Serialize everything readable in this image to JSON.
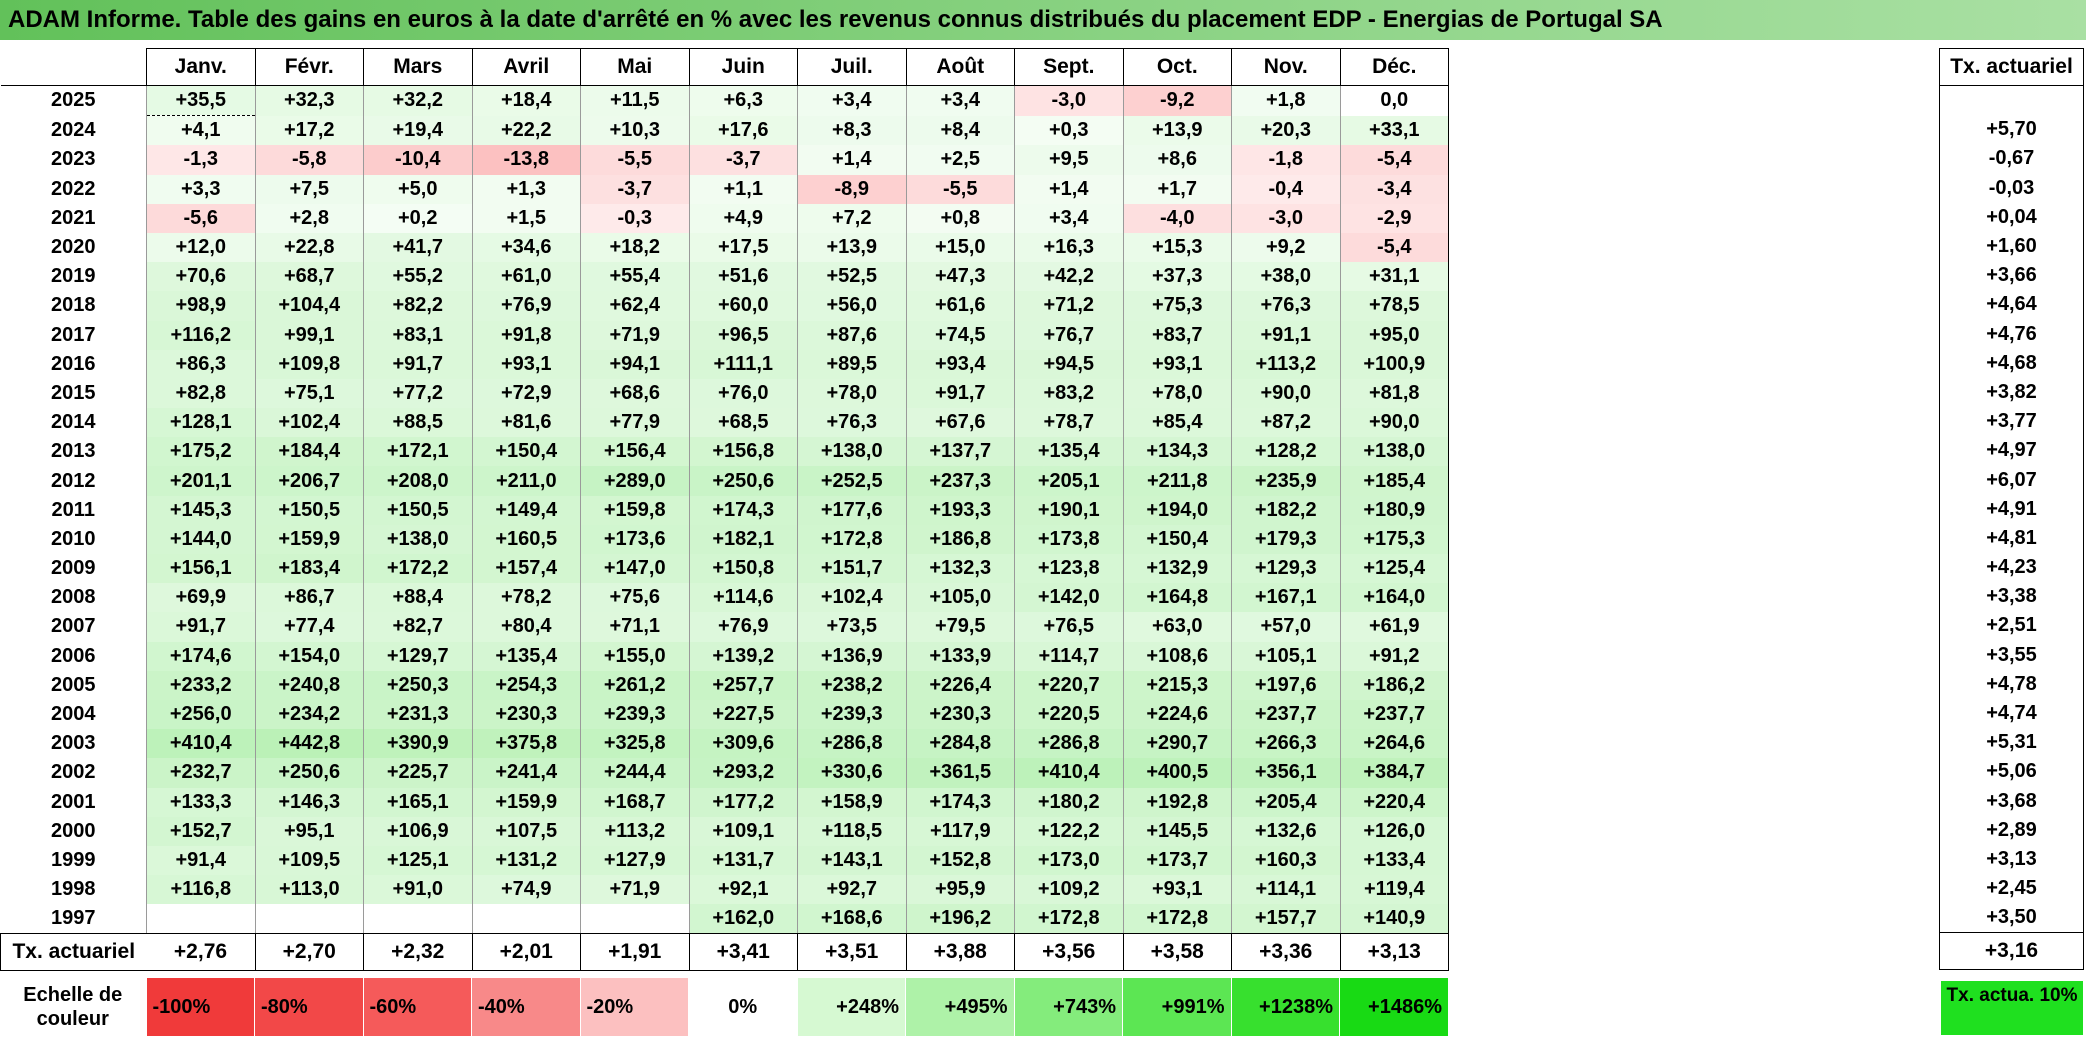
{
  "title": "ADAM Informe. Table des gains en euros à la date d'arrêté en % avec les revenus connus distribués du placement EDP - Energias de Portugal SA",
  "months": [
    "Janv.",
    "Févr.",
    "Mars",
    "Avril",
    "Mai",
    "Juin",
    "Juil.",
    "Août",
    "Sept.",
    "Oct.",
    "Nov.",
    "Déc."
  ],
  "side_header": "Tx. actuariel",
  "rows": [
    {
      "year": "2025",
      "vals": [
        "+35,5",
        "+32,3",
        "+32,2",
        "+18,4",
        "+11,5",
        "+6,3",
        "+3,4",
        "+3,4",
        "-3,0",
        "-9,2",
        "+1,8",
        "0,0"
      ],
      "tx": ""
    },
    {
      "year": "2024",
      "vals": [
        "+4,1",
        "+17,2",
        "+19,4",
        "+22,2",
        "+10,3",
        "+17,6",
        "+8,3",
        "+8,4",
        "+0,3",
        "+13,9",
        "+20,3",
        "+33,1"
      ],
      "tx": "+5,70"
    },
    {
      "year": "2023",
      "vals": [
        "-1,3",
        "-5,8",
        "-10,4",
        "-13,8",
        "-5,5",
        "-3,7",
        "+1,4",
        "+2,5",
        "+9,5",
        "+8,6",
        "-1,8",
        "-5,4"
      ],
      "tx": "-0,67"
    },
    {
      "year": "2022",
      "vals": [
        "+3,3",
        "+7,5",
        "+5,0",
        "+1,3",
        "-3,7",
        "+1,1",
        "-8,9",
        "-5,5",
        "+1,4",
        "+1,7",
        "-0,4",
        "-3,4"
      ],
      "tx": "-0,03"
    },
    {
      "year": "2021",
      "vals": [
        "-5,6",
        "+2,8",
        "+0,2",
        "+1,5",
        "-0,3",
        "+4,9",
        "+7,2",
        "+0,8",
        "+3,4",
        "-4,0",
        "-3,0",
        "-2,9"
      ],
      "tx": "+0,04"
    },
    {
      "year": "2020",
      "vals": [
        "+12,0",
        "+22,8",
        "+41,7",
        "+34,6",
        "+18,2",
        "+17,5",
        "+13,9",
        "+15,0",
        "+16,3",
        "+15,3",
        "+9,2",
        "-5,4"
      ],
      "tx": "+1,60"
    },
    {
      "year": "2019",
      "vals": [
        "+70,6",
        "+68,7",
        "+55,2",
        "+61,0",
        "+55,4",
        "+51,6",
        "+52,5",
        "+47,3",
        "+42,2",
        "+37,3",
        "+38,0",
        "+31,1"
      ],
      "tx": "+3,66"
    },
    {
      "year": "2018",
      "vals": [
        "+98,9",
        "+104,4",
        "+82,2",
        "+76,9",
        "+62,4",
        "+60,0",
        "+56,0",
        "+61,6",
        "+71,2",
        "+75,3",
        "+76,3",
        "+78,5"
      ],
      "tx": "+4,64"
    },
    {
      "year": "2017",
      "vals": [
        "+116,2",
        "+99,1",
        "+83,1",
        "+91,8",
        "+71,9",
        "+96,5",
        "+87,6",
        "+74,5",
        "+76,7",
        "+83,7",
        "+91,1",
        "+95,0"
      ],
      "tx": "+4,76"
    },
    {
      "year": "2016",
      "vals": [
        "+86,3",
        "+109,8",
        "+91,7",
        "+93,1",
        "+94,1",
        "+111,1",
        "+89,5",
        "+93,4",
        "+94,5",
        "+93,1",
        "+113,2",
        "+100,9"
      ],
      "tx": "+4,68"
    },
    {
      "year": "2015",
      "vals": [
        "+82,8",
        "+75,1",
        "+77,2",
        "+72,9",
        "+68,6",
        "+76,0",
        "+78,0",
        "+91,7",
        "+83,2",
        "+78,0",
        "+90,0",
        "+81,8"
      ],
      "tx": "+3,82"
    },
    {
      "year": "2014",
      "vals": [
        "+128,1",
        "+102,4",
        "+88,5",
        "+81,6",
        "+77,9",
        "+68,5",
        "+76,3",
        "+67,6",
        "+78,7",
        "+85,4",
        "+87,2",
        "+90,0"
      ],
      "tx": "+3,77"
    },
    {
      "year": "2013",
      "vals": [
        "+175,2",
        "+184,4",
        "+172,1",
        "+150,4",
        "+156,4",
        "+156,8",
        "+138,0",
        "+137,7",
        "+135,4",
        "+134,3",
        "+128,2",
        "+138,0"
      ],
      "tx": "+4,97"
    },
    {
      "year": "2012",
      "vals": [
        "+201,1",
        "+206,7",
        "+208,0",
        "+211,0",
        "+289,0",
        "+250,6",
        "+252,5",
        "+237,3",
        "+205,1",
        "+211,8",
        "+235,9",
        "+185,4"
      ],
      "tx": "+6,07"
    },
    {
      "year": "2011",
      "vals": [
        "+145,3",
        "+150,5",
        "+150,5",
        "+149,4",
        "+159,8",
        "+174,3",
        "+177,6",
        "+193,3",
        "+190,1",
        "+194,0",
        "+182,2",
        "+180,9"
      ],
      "tx": "+4,91"
    },
    {
      "year": "2010",
      "vals": [
        "+144,0",
        "+159,9",
        "+138,0",
        "+160,5",
        "+173,6",
        "+182,1",
        "+172,8",
        "+186,8",
        "+173,8",
        "+150,4",
        "+179,3",
        "+175,3"
      ],
      "tx": "+4,81"
    },
    {
      "year": "2009",
      "vals": [
        "+156,1",
        "+183,4",
        "+172,2",
        "+157,4",
        "+147,0",
        "+150,8",
        "+151,7",
        "+132,3",
        "+123,8",
        "+132,9",
        "+129,3",
        "+125,4"
      ],
      "tx": "+4,23"
    },
    {
      "year": "2008",
      "vals": [
        "+69,9",
        "+86,7",
        "+88,4",
        "+78,2",
        "+75,6",
        "+114,6",
        "+102,4",
        "+105,0",
        "+142,0",
        "+164,8",
        "+167,1",
        "+164,0"
      ],
      "tx": "+3,38"
    },
    {
      "year": "2007",
      "vals": [
        "+91,7",
        "+77,4",
        "+82,7",
        "+80,4",
        "+71,1",
        "+76,9",
        "+73,5",
        "+79,5",
        "+76,5",
        "+63,0",
        "+57,0",
        "+61,9"
      ],
      "tx": "+2,51"
    },
    {
      "year": "2006",
      "vals": [
        "+174,6",
        "+154,0",
        "+129,7",
        "+135,4",
        "+155,0",
        "+139,2",
        "+136,9",
        "+133,9",
        "+114,7",
        "+108,6",
        "+105,1",
        "+91,2"
      ],
      "tx": "+3,55"
    },
    {
      "year": "2005",
      "vals": [
        "+233,2",
        "+240,8",
        "+250,3",
        "+254,3",
        "+261,2",
        "+257,7",
        "+238,2",
        "+226,4",
        "+220,7",
        "+215,3",
        "+197,6",
        "+186,2"
      ],
      "tx": "+4,78"
    },
    {
      "year": "2004",
      "vals": [
        "+256,0",
        "+234,2",
        "+231,3",
        "+230,3",
        "+239,3",
        "+227,5",
        "+239,3",
        "+230,3",
        "+220,5",
        "+224,6",
        "+237,7",
        "+237,7"
      ],
      "tx": "+4,74"
    },
    {
      "year": "2003",
      "vals": [
        "+410,4",
        "+442,8",
        "+390,9",
        "+375,8",
        "+325,8",
        "+309,6",
        "+286,8",
        "+284,8",
        "+286,8",
        "+290,7",
        "+266,3",
        "+264,6"
      ],
      "tx": "+5,31"
    },
    {
      "year": "2002",
      "vals": [
        "+232,7",
        "+250,6",
        "+225,7",
        "+241,4",
        "+244,4",
        "+293,2",
        "+330,6",
        "+361,5",
        "+410,4",
        "+400,5",
        "+356,1",
        "+384,7"
      ],
      "tx": "+5,06"
    },
    {
      "year": "2001",
      "vals": [
        "+133,3",
        "+146,3",
        "+165,1",
        "+159,9",
        "+168,7",
        "+177,2",
        "+158,9",
        "+174,3",
        "+180,2",
        "+192,8",
        "+205,4",
        "+220,4"
      ],
      "tx": "+3,68"
    },
    {
      "year": "2000",
      "vals": [
        "+152,7",
        "+95,1",
        "+106,9",
        "+107,5",
        "+113,2",
        "+109,1",
        "+118,5",
        "+117,9",
        "+122,2",
        "+145,5",
        "+132,6",
        "+126,0"
      ],
      "tx": "+2,89"
    },
    {
      "year": "1999",
      "vals": [
        "+91,4",
        "+109,5",
        "+125,1",
        "+131,2",
        "+127,9",
        "+131,7",
        "+143,1",
        "+152,8",
        "+173,0",
        "+173,7",
        "+160,3",
        "+133,4"
      ],
      "tx": "+3,13"
    },
    {
      "year": "1998",
      "vals": [
        "+116,8",
        "+113,0",
        "+91,0",
        "+74,9",
        "+71,9",
        "+92,1",
        "+92,7",
        "+95,9",
        "+109,2",
        "+93,1",
        "+114,1",
        "+119,4"
      ],
      "tx": "+2,45"
    },
    {
      "year": "1997",
      "vals": [
        "",
        "",
        "",
        "",
        "",
        "+162,0",
        "+168,6",
        "+196,2",
        "+172,8",
        "+172,8",
        "+157,7",
        "+140,9"
      ],
      "tx": "+3,50"
    }
  ],
  "summary": {
    "label": "Tx. actuariel",
    "vals": [
      "+2,76",
      "+2,70",
      "+2,32",
      "+2,01",
      "+1,91",
      "+3,41",
      "+3,51",
      "+3,88",
      "+3,56",
      "+3,58",
      "+3,36",
      "+3,13"
    ],
    "tx": "+3,16"
  },
  "scale": {
    "label": "Echelle de couleur",
    "steps": [
      {
        "text": "-100%",
        "color": "#f03a3a",
        "kind": "neg"
      },
      {
        "text": "-80%",
        "color": "#f24848",
        "kind": "neg"
      },
      {
        "text": "-60%",
        "color": "#f55a5a",
        "kind": "neg"
      },
      {
        "text": "-40%",
        "color": "#f88989",
        "kind": "neg"
      },
      {
        "text": "-20%",
        "color": "#fcc0c0",
        "kind": "neg"
      },
      {
        "text": "0%",
        "color": "#ffffff",
        "kind": "zero"
      },
      {
        "text": "+248%",
        "color": "#d6f9d2",
        "kind": "pos"
      },
      {
        "text": "+495%",
        "color": "#aef2a8",
        "kind": "pos"
      },
      {
        "text": "+743%",
        "color": "#84ec7c",
        "kind": "pos"
      },
      {
        "text": "+991%",
        "color": "#5ce653",
        "kind": "pos"
      },
      {
        "text": "+1238%",
        "color": "#37e02e",
        "kind": "pos"
      },
      {
        "text": "+1486%",
        "color": "#18da14",
        "kind": "pos"
      }
    ],
    "tx_label": "Tx. actua. 10%"
  }
}
